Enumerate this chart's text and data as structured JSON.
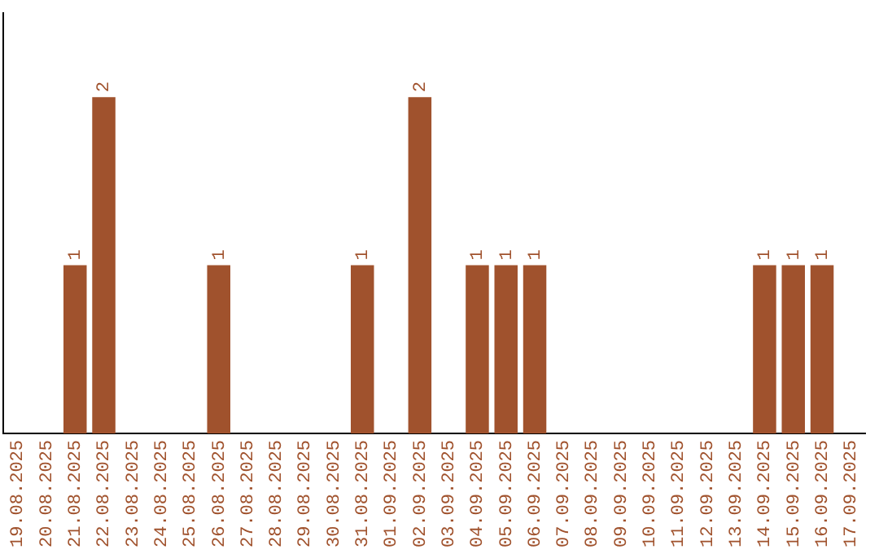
{
  "chart_data": {
    "type": "bar",
    "categories": [
      "19.08.2025",
      "20.08.2025",
      "21.08.2025",
      "22.08.2025",
      "23.08.2025",
      "24.08.2025",
      "25.08.2025",
      "26.08.2025",
      "27.08.2025",
      "28.08.2025",
      "29.08.2025",
      "30.08.2025",
      "31.08.2025",
      "01.09.2025",
      "02.09.2025",
      "03.09.2025",
      "04.09.2025",
      "05.09.2025",
      "06.09.2025",
      "07.09.2025",
      "08.09.2025",
      "09.09.2025",
      "10.09.2025",
      "11.09.2025",
      "12.09.2025",
      "13.09.2025",
      "14.09.2025",
      "15.09.2025",
      "16.09.2025",
      "17.09.2025"
    ],
    "values": [
      0,
      0,
      1,
      2,
      0,
      0,
      0,
      1,
      0,
      0,
      0,
      0,
      1,
      0,
      2,
      0,
      1,
      1,
      1,
      0,
      0,
      0,
      0,
      0,
      0,
      0,
      1,
      1,
      1,
      0
    ],
    "value_labels": [
      null,
      null,
      "1",
      "2",
      null,
      null,
      null,
      "1",
      null,
      null,
      null,
      null,
      "1",
      null,
      "2",
      null,
      "1",
      "1",
      "1",
      null,
      null,
      null,
      null,
      null,
      null,
      null,
      "1",
      "1",
      "1",
      null
    ],
    "color": "#a0522d",
    "tick_labels": "x",
    "grid": false,
    "legend": false
  }
}
